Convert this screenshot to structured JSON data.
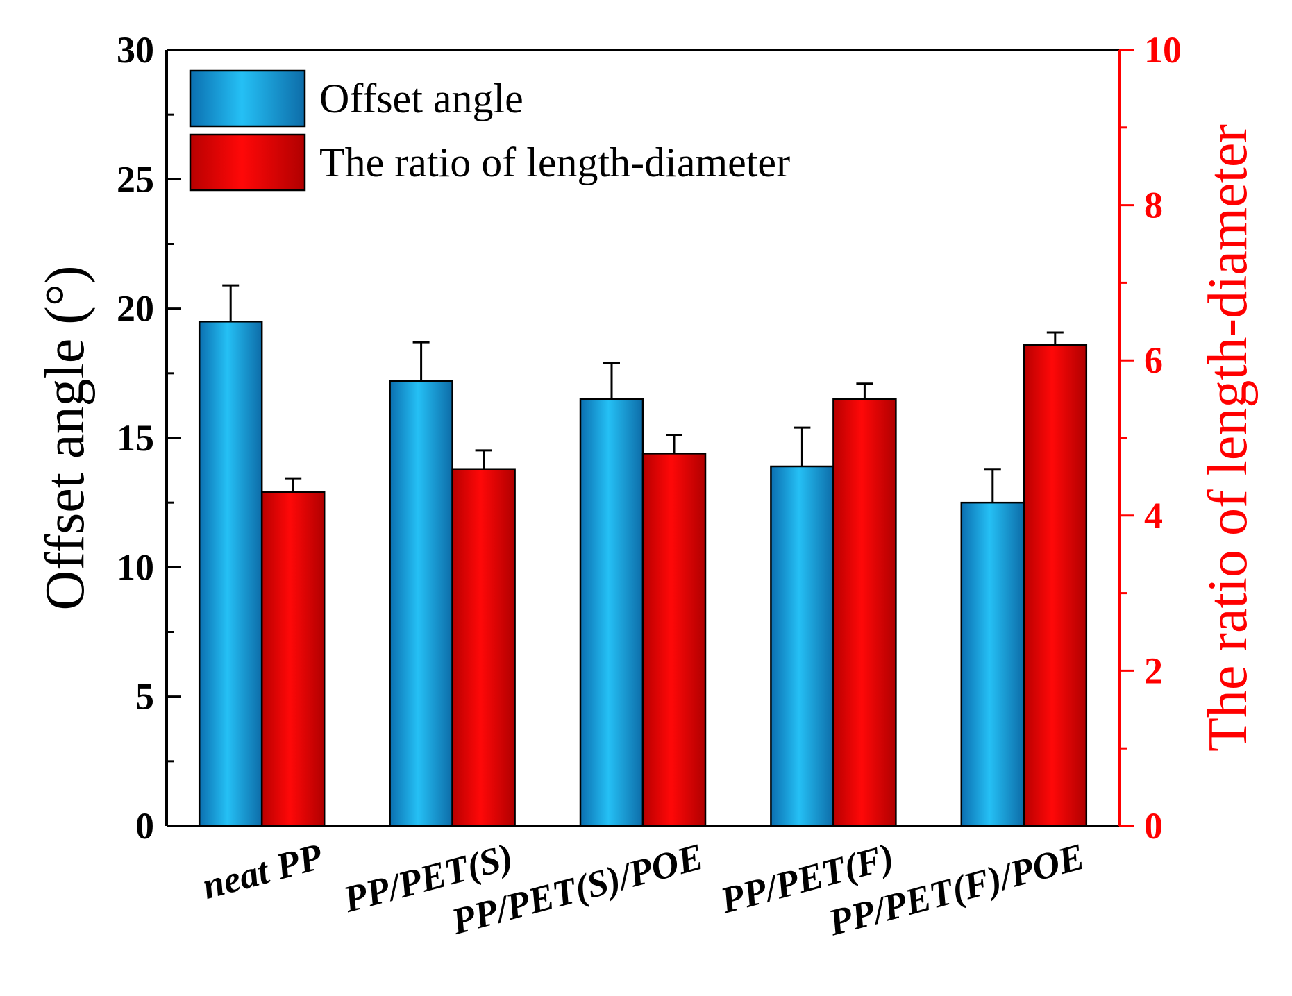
{
  "chart_data": {
    "type": "bar",
    "categories": [
      "neat PP",
      "PP/PET(S)",
      "PP/PET(S)/POE",
      "PP/PET(F)",
      "PP/PET(F)/POE"
    ],
    "series": [
      {
        "name": "Offset angle",
        "axis": "left",
        "values": [
          19.5,
          17.2,
          16.5,
          13.9,
          12.5
        ],
        "errors": [
          1.4,
          1.5,
          1.4,
          1.5,
          1.3
        ],
        "color": "#1aa7e6"
      },
      {
        "name": "The ratio of length-diameter",
        "axis": "right",
        "values": [
          4.3,
          4.6,
          4.8,
          5.5,
          6.2
        ],
        "errors": [
          0.18,
          0.24,
          0.24,
          0.2,
          0.16
        ],
        "color": "#ff0000"
      }
    ],
    "y_left": {
      "label": "Offset angle (°)",
      "ylim": [
        0,
        30
      ],
      "ticks": [
        0,
        5,
        10,
        15,
        20,
        25,
        30
      ],
      "color": "#000000"
    },
    "y_right": {
      "label": "The ratio of length-diameter",
      "ylim": [
        0,
        10
      ],
      "ticks": [
        0,
        2,
        4,
        6,
        8,
        10
      ],
      "color": "#ff0000"
    },
    "legend_position": "top-left",
    "grid": false
  }
}
